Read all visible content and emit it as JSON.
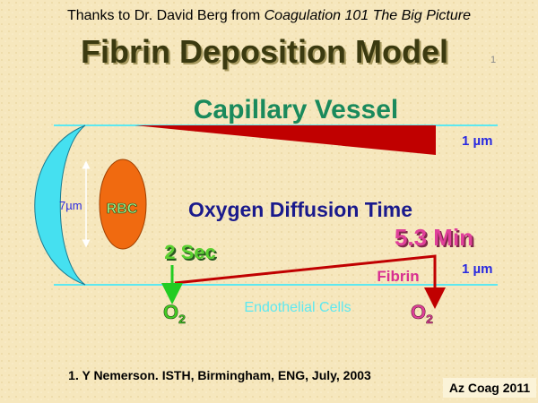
{
  "header": {
    "credit": "Thanks to Dr. David Berg from ",
    "credit_source": "Coagulation 101 The Big Picture",
    "title": "Fibrin  Deposition  Model",
    "title_note": "1"
  },
  "diagram": {
    "vessel_label": "Capillary  Vessel",
    "top_width": "1 µm",
    "rbc_size": "7µm",
    "rbc_label": "RBC",
    "center_label": "Oxygen  Diffusion  Time",
    "long_time": "5.3 Min",
    "short_time": "2 Sec",
    "fibrin_label": "Fibrin",
    "bottom_width": "1 µm",
    "oxygen_left": {
      "base": "O",
      "sub": "2"
    },
    "oxygen_right": {
      "base": "O",
      "sub": "2"
    },
    "wall_label": "Endothelial  Cells"
  },
  "footer": {
    "reference": "1. Y Nemerson.  ISTH, Birmingham, ENG,  July, 2003",
    "badge": "Az Coag 2011"
  }
}
